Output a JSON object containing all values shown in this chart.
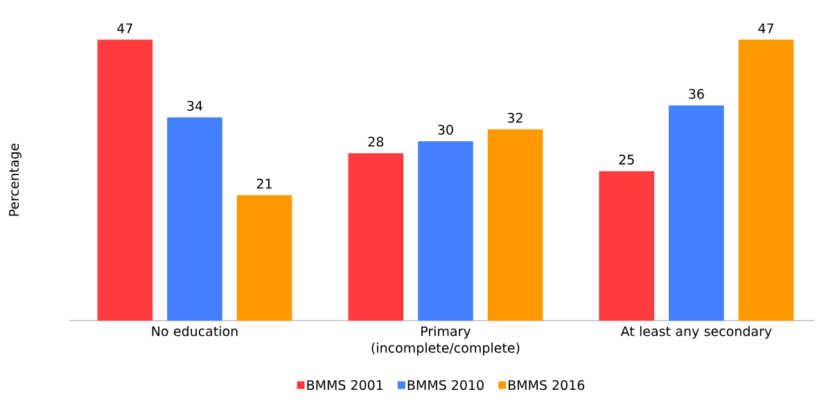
{
  "chart_data": {
    "type": "bar",
    "ylabel": "Percentage",
    "categories": [
      "No education",
      "Primary (incomplete/complete)",
      "At least any secondary"
    ],
    "series": [
      {
        "name": "BMMS 2001",
        "color": "#ff3b3f",
        "values": [
          47,
          28,
          25
        ]
      },
      {
        "name": "BMMS 2010",
        "color": "#4480ff",
        "values": [
          34,
          30,
          36
        ]
      },
      {
        "name": "BMMS 2016",
        "color": "#ff9900",
        "values": [
          21,
          32,
          47
        ]
      }
    ],
    "data_labels": true,
    "legend": "bottom"
  }
}
